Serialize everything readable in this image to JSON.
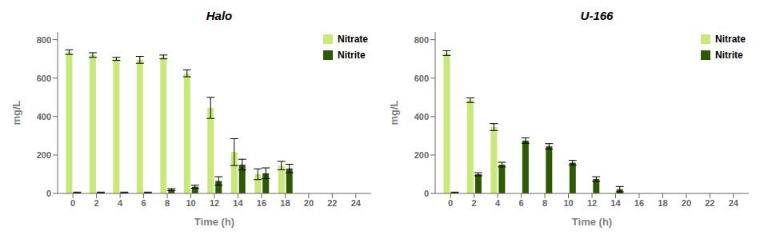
{
  "chart_data": [
    {
      "type": "bar",
      "title": "Halo",
      "xlabel": "Time (h)",
      "ylabel": "mg/L",
      "xlim": [
        -1.3,
        25.3
      ],
      "xticks": [
        0,
        2,
        4,
        6,
        8,
        10,
        12,
        14,
        16,
        18,
        20,
        22,
        24
      ],
      "ylim": [
        0,
        840
      ],
      "yticks": [
        0,
        200,
        400,
        600,
        800
      ],
      "legend": "upper right",
      "series": [
        {
          "name": "Nitrate",
          "color": "#c8e878",
          "x": [
            0,
            2,
            4,
            6,
            8,
            10,
            12,
            14,
            16,
            18
          ],
          "values": [
            735,
            720,
            700,
            695,
            710,
            625,
            445,
            215,
            100,
            145
          ],
          "errors": [
            12,
            12,
            8,
            18,
            10,
            18,
            55,
            70,
            28,
            22
          ]
        },
        {
          "name": "Nitrite",
          "color": "#2d5a00",
          "x": [
            0,
            2,
            4,
            6,
            8,
            10,
            12,
            14,
            16,
            18
          ],
          "values": [
            5,
            5,
            5,
            5,
            20,
            35,
            65,
            150,
            105,
            130
          ],
          "errors": [
            2,
            2,
            2,
            2,
            5,
            8,
            22,
            28,
            28,
            22
          ]
        }
      ]
    },
    {
      "type": "bar",
      "title": "U-166",
      "xlabel": "Time (h)",
      "ylabel": "mg/L",
      "xlim": [
        -1.3,
        25.3
      ],
      "xticks": [
        0,
        2,
        4,
        6,
        8,
        10,
        12,
        14,
        16,
        18,
        20,
        22,
        24
      ],
      "ylim": [
        0,
        840
      ],
      "yticks": [
        0,
        200,
        400,
        600,
        800
      ],
      "legend": "upper right",
      "series": [
        {
          "name": "Nitrate",
          "color": "#c8e878",
          "x": [
            0,
            2,
            4
          ],
          "values": [
            730,
            485,
            345
          ],
          "errors": [
            12,
            12,
            18
          ]
        },
        {
          "name": "Nitrite",
          "color": "#2d5a00",
          "x": [
            0,
            2,
            4,
            6,
            8,
            10,
            12,
            14
          ],
          "values": [
            5,
            100,
            150,
            275,
            245,
            160,
            75,
            22
          ],
          "errors": [
            2,
            8,
            12,
            14,
            14,
            12,
            12,
            14
          ]
        }
      ]
    }
  ]
}
